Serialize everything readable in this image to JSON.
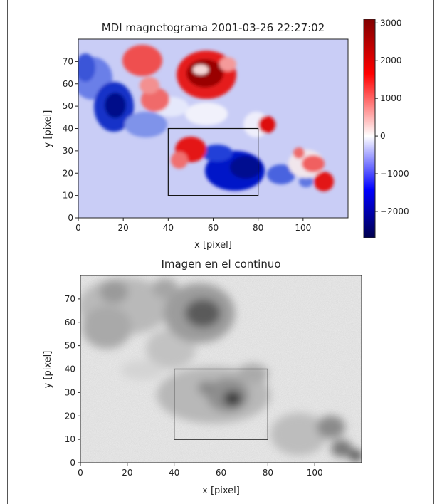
{
  "chart_data": [
    {
      "type": "heatmap",
      "title": "MDI magnetograma 2001-03-26 22:27:02",
      "xlabel": "x [pixel]",
      "ylabel": "y [pixel]",
      "xlim": [
        0,
        120
      ],
      "ylim": [
        0,
        80
      ],
      "x_ticks": [
        "0",
        "20",
        "40",
        "60",
        "80",
        "100"
      ],
      "y_ticks": [
        "0",
        "10",
        "20",
        "30",
        "40",
        "50",
        "60",
        "70"
      ],
      "colorbar": {
        "range": [
          -2700,
          3100
        ],
        "ticks": [
          "3000",
          "2000",
          "1000",
          "0",
          "−1000",
          "−2000"
        ],
        "colormap": "seismic",
        "colors": [
          "#00004d",
          "#0000ff",
          "#ffffff",
          "#ff0000",
          "#800000"
        ]
      },
      "region_box": {
        "x": [
          40,
          80
        ],
        "y": [
          10,
          40
        ]
      }
    },
    {
      "type": "heatmap",
      "title": "Imagen en el continuo",
      "xlabel": "x [pixel]",
      "ylabel": "y [pixel]",
      "xlim": [
        0,
        120
      ],
      "ylim": [
        0,
        80
      ],
      "x_ticks": [
        "0",
        "20",
        "40",
        "60",
        "80",
        "100"
      ],
      "y_ticks": [
        "0",
        "10",
        "20",
        "30",
        "40",
        "50",
        "60",
        "70"
      ],
      "colormap": "gray",
      "region_box": {
        "x": [
          40,
          80
        ],
        "y": [
          10,
          40
        ]
      }
    }
  ]
}
